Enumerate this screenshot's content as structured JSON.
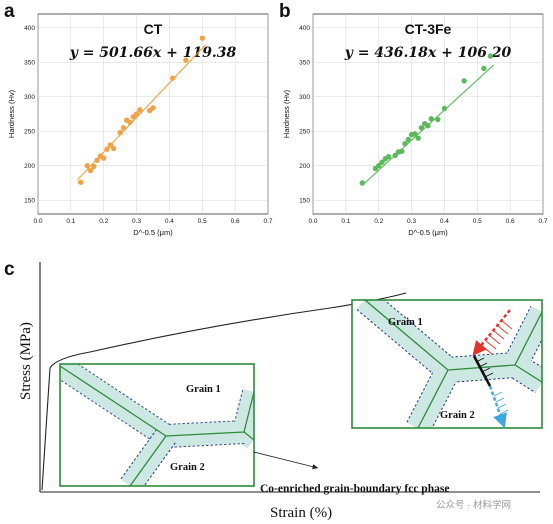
{
  "panels": {
    "a": "a",
    "b": "b",
    "c": "c"
  },
  "chart_data": [
    {
      "type": "scatter",
      "title": "CT",
      "equation": "y = 501.66x + 119.38",
      "xlabel": "D^-0.5 (μm)",
      "ylabel": "Hardness (Hv)",
      "xlim": [
        0.0,
        0.7
      ],
      "ylim": [
        130,
        420
      ],
      "xticks": [
        "0.0",
        "0.1",
        "0.2",
        "0.3",
        "0.4",
        "0.5",
        "0.6",
        "0.7"
      ],
      "yticks": [
        "150",
        "200",
        "250",
        "300",
        "350",
        "400"
      ],
      "color": "#f0a244",
      "fit": {
        "slope": 501.66,
        "intercept": 119.38,
        "x_range": [
          0.12,
          0.51
        ]
      },
      "x": [
        0.13,
        0.15,
        0.16,
        0.17,
        0.18,
        0.19,
        0.2,
        0.21,
        0.22,
        0.23,
        0.25,
        0.26,
        0.27,
        0.28,
        0.29,
        0.3,
        0.31,
        0.34,
        0.35,
        0.41,
        0.45,
        0.5
      ],
      "y": [
        176,
        200,
        193,
        199,
        208,
        214,
        211,
        224,
        230,
        225,
        248,
        255,
        266,
        263,
        271,
        275,
        281,
        280,
        284,
        327,
        353,
        385
      ]
    },
    {
      "type": "scatter",
      "title": "CT-3Fe",
      "equation": "y = 436.18x + 106.20",
      "xlabel": "D^-0.5 (μm)",
      "ylabel": "Hardness (Hv)",
      "xlim": [
        0.0,
        0.7
      ],
      "ylim": [
        130,
        420
      ],
      "xticks": [
        "0.0",
        "0.1",
        "0.2",
        "0.3",
        "0.4",
        "0.5",
        "0.6",
        "0.7"
      ],
      "yticks": [
        "150",
        "200",
        "250",
        "300",
        "350",
        "400"
      ],
      "color": "#5cb85c",
      "fit": {
        "slope": 436.18,
        "intercept": 106.2,
        "x_range": [
          0.15,
          0.55
        ]
      },
      "x": [
        0.15,
        0.19,
        0.2,
        0.21,
        0.22,
        0.23,
        0.25,
        0.26,
        0.27,
        0.28,
        0.29,
        0.3,
        0.31,
        0.32,
        0.33,
        0.34,
        0.35,
        0.36,
        0.38,
        0.4,
        0.46,
        0.52,
        0.54
      ],
      "y": [
        175,
        196,
        200,
        205,
        210,
        213,
        215,
        220,
        221,
        232,
        238,
        245,
        246,
        240,
        255,
        261,
        258,
        268,
        267,
        283,
        323,
        341,
        359
      ]
    }
  ],
  "schematic": {
    "ylabel": "Stress (MPa)",
    "xlabel": "Strain (%)",
    "grain1": "Grain 1",
    "grain2": "Grain 2",
    "caption": "Co-enriched grain-boundary fcc phase",
    "boundary_fill": "#cde8e3",
    "boundary_line": "#2e8b3a",
    "dash_color": "#1f3c8a"
  },
  "watermark": "公众号 · 材料学网"
}
